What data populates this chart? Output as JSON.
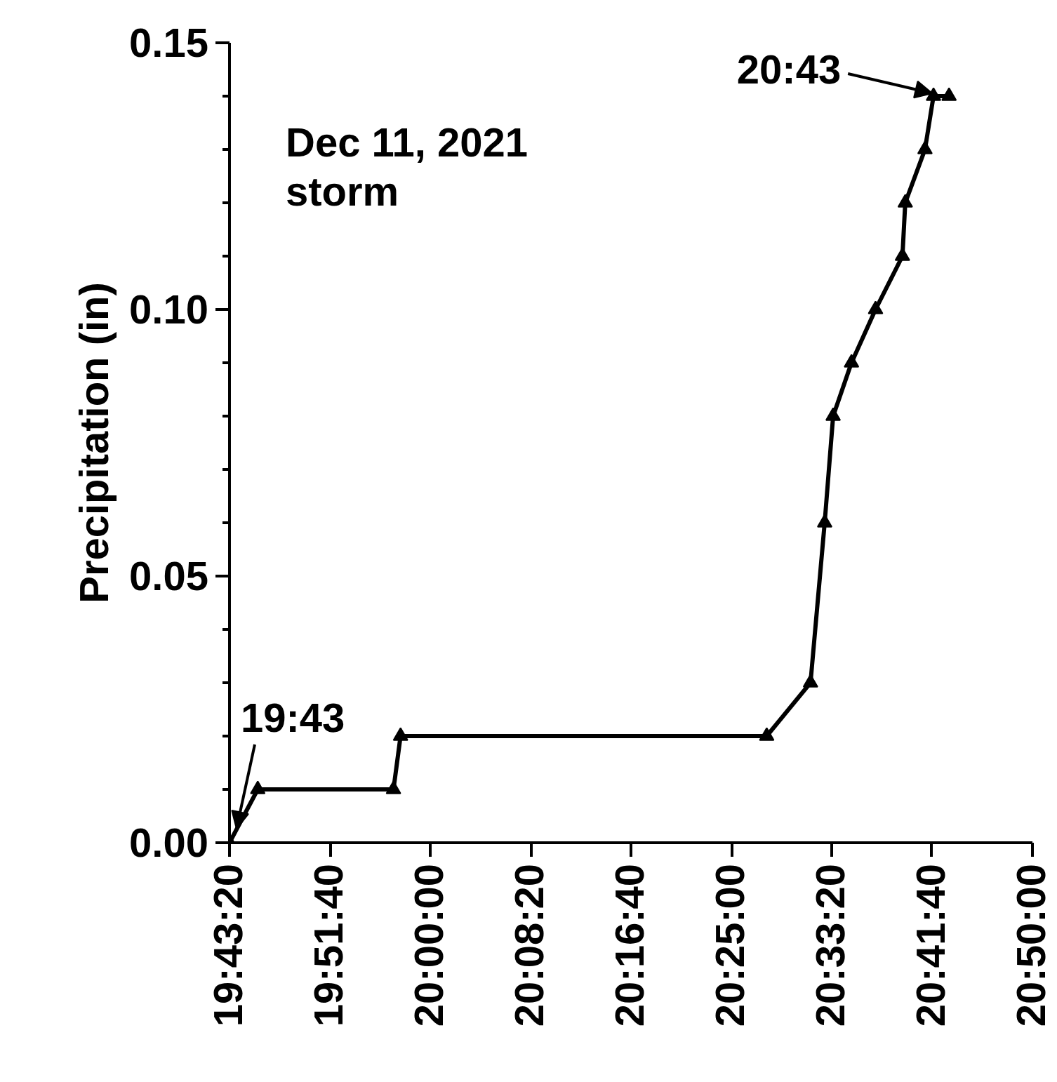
{
  "chart_data": {
    "type": "line",
    "ylabel": "Precipitation (in)",
    "marker": "triangle",
    "grid": false,
    "x": [
      19.7222,
      19.7613,
      19.9491,
      19.9589,
      20.4656,
      20.5262,
      20.5458,
      20.5575,
      20.5829,
      20.6162,
      20.6534,
      20.6573,
      20.6846,
      20.6964,
      20.7179
    ],
    "series": [
      {
        "color": "#000000",
        "values": [
          0.0,
          0.01,
          0.01,
          0.02,
          0.02,
          0.03,
          0.06,
          0.08,
          0.09,
          0.1,
          0.11,
          0.12,
          0.13,
          0.14,
          0.14
        ]
      }
    ],
    "xlim": [
      19.7222,
      20.8333
    ],
    "xticks": [
      {
        "value": 19.7222,
        "label": "19:43:20"
      },
      {
        "value": 19.8611,
        "label": "19:51:40"
      },
      {
        "value": 20.0,
        "label": "20:00:00"
      },
      {
        "value": 20.1389,
        "label": "20:08:20"
      },
      {
        "value": 20.2778,
        "label": "20:16:40"
      },
      {
        "value": 20.4167,
        "label": "20:25:00"
      },
      {
        "value": 20.5556,
        "label": "20:33:20"
      },
      {
        "value": 20.6944,
        "label": "20:41:40"
      },
      {
        "value": 20.8333,
        "label": "20:50:00"
      }
    ],
    "ylim": [
      0,
      0.15
    ],
    "yticks": [
      {
        "value": 0,
        "label": "0.00"
      },
      {
        "value": 0.05,
        "label": "0.05"
      },
      {
        "value": 0.1,
        "label": "0.10"
      },
      {
        "value": 0.15,
        "label": "0.15"
      }
    ],
    "annotations": [
      "Dec 11, 2021\nstorm",
      {
        "text": "19:43",
        "x": 19.7222,
        "y": 0.0
      },
      {
        "text": "20:43",
        "x": 20.7179,
        "y": 0.14
      }
    ]
  }
}
